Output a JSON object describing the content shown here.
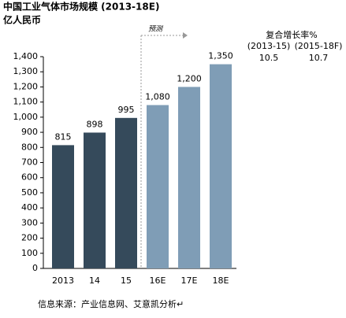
{
  "chart_data": {
    "type": "bar",
    "title": "中国工业气体市场规模 (2013-18E)",
    "subtitle": "亿人民币",
    "categories": [
      "2013",
      "14",
      "15",
      "16E",
      "17E",
      "18E"
    ],
    "values": [
      815,
      898,
      995,
      1080,
      1200,
      1350
    ],
    "value_labels": [
      "815",
      "898",
      "995",
      "1,080",
      "1,200",
      "1,350"
    ],
    "colors": [
      "#354a5b",
      "#354a5b",
      "#354a5b",
      "#7f9db6",
      "#7f9db6",
      "#7f9db6"
    ],
    "ylim": [
      0,
      1400
    ],
    "yticks": [
      0,
      100,
      200,
      300,
      400,
      500,
      600,
      700,
      800,
      900,
      {
        "value": 1000,
        "label": "1,000"
      },
      {
        "value": 1100,
        "label": "1,100"
      },
      {
        "value": 1200,
        "label": "1,200"
      },
      {
        "value": 1300,
        "label": "1,300"
      },
      {
        "value": 1400,
        "label": "1,400"
      }
    ],
    "grid": false,
    "forecast_label": "预测",
    "cagr": {
      "title": "复合增长率%",
      "columns": [
        "(2013-15)",
        "(2015-18F)"
      ],
      "values": [
        10.5,
        10.7
      ]
    },
    "source": "信息来源：产业信息网、艾意凯分析↵"
  }
}
